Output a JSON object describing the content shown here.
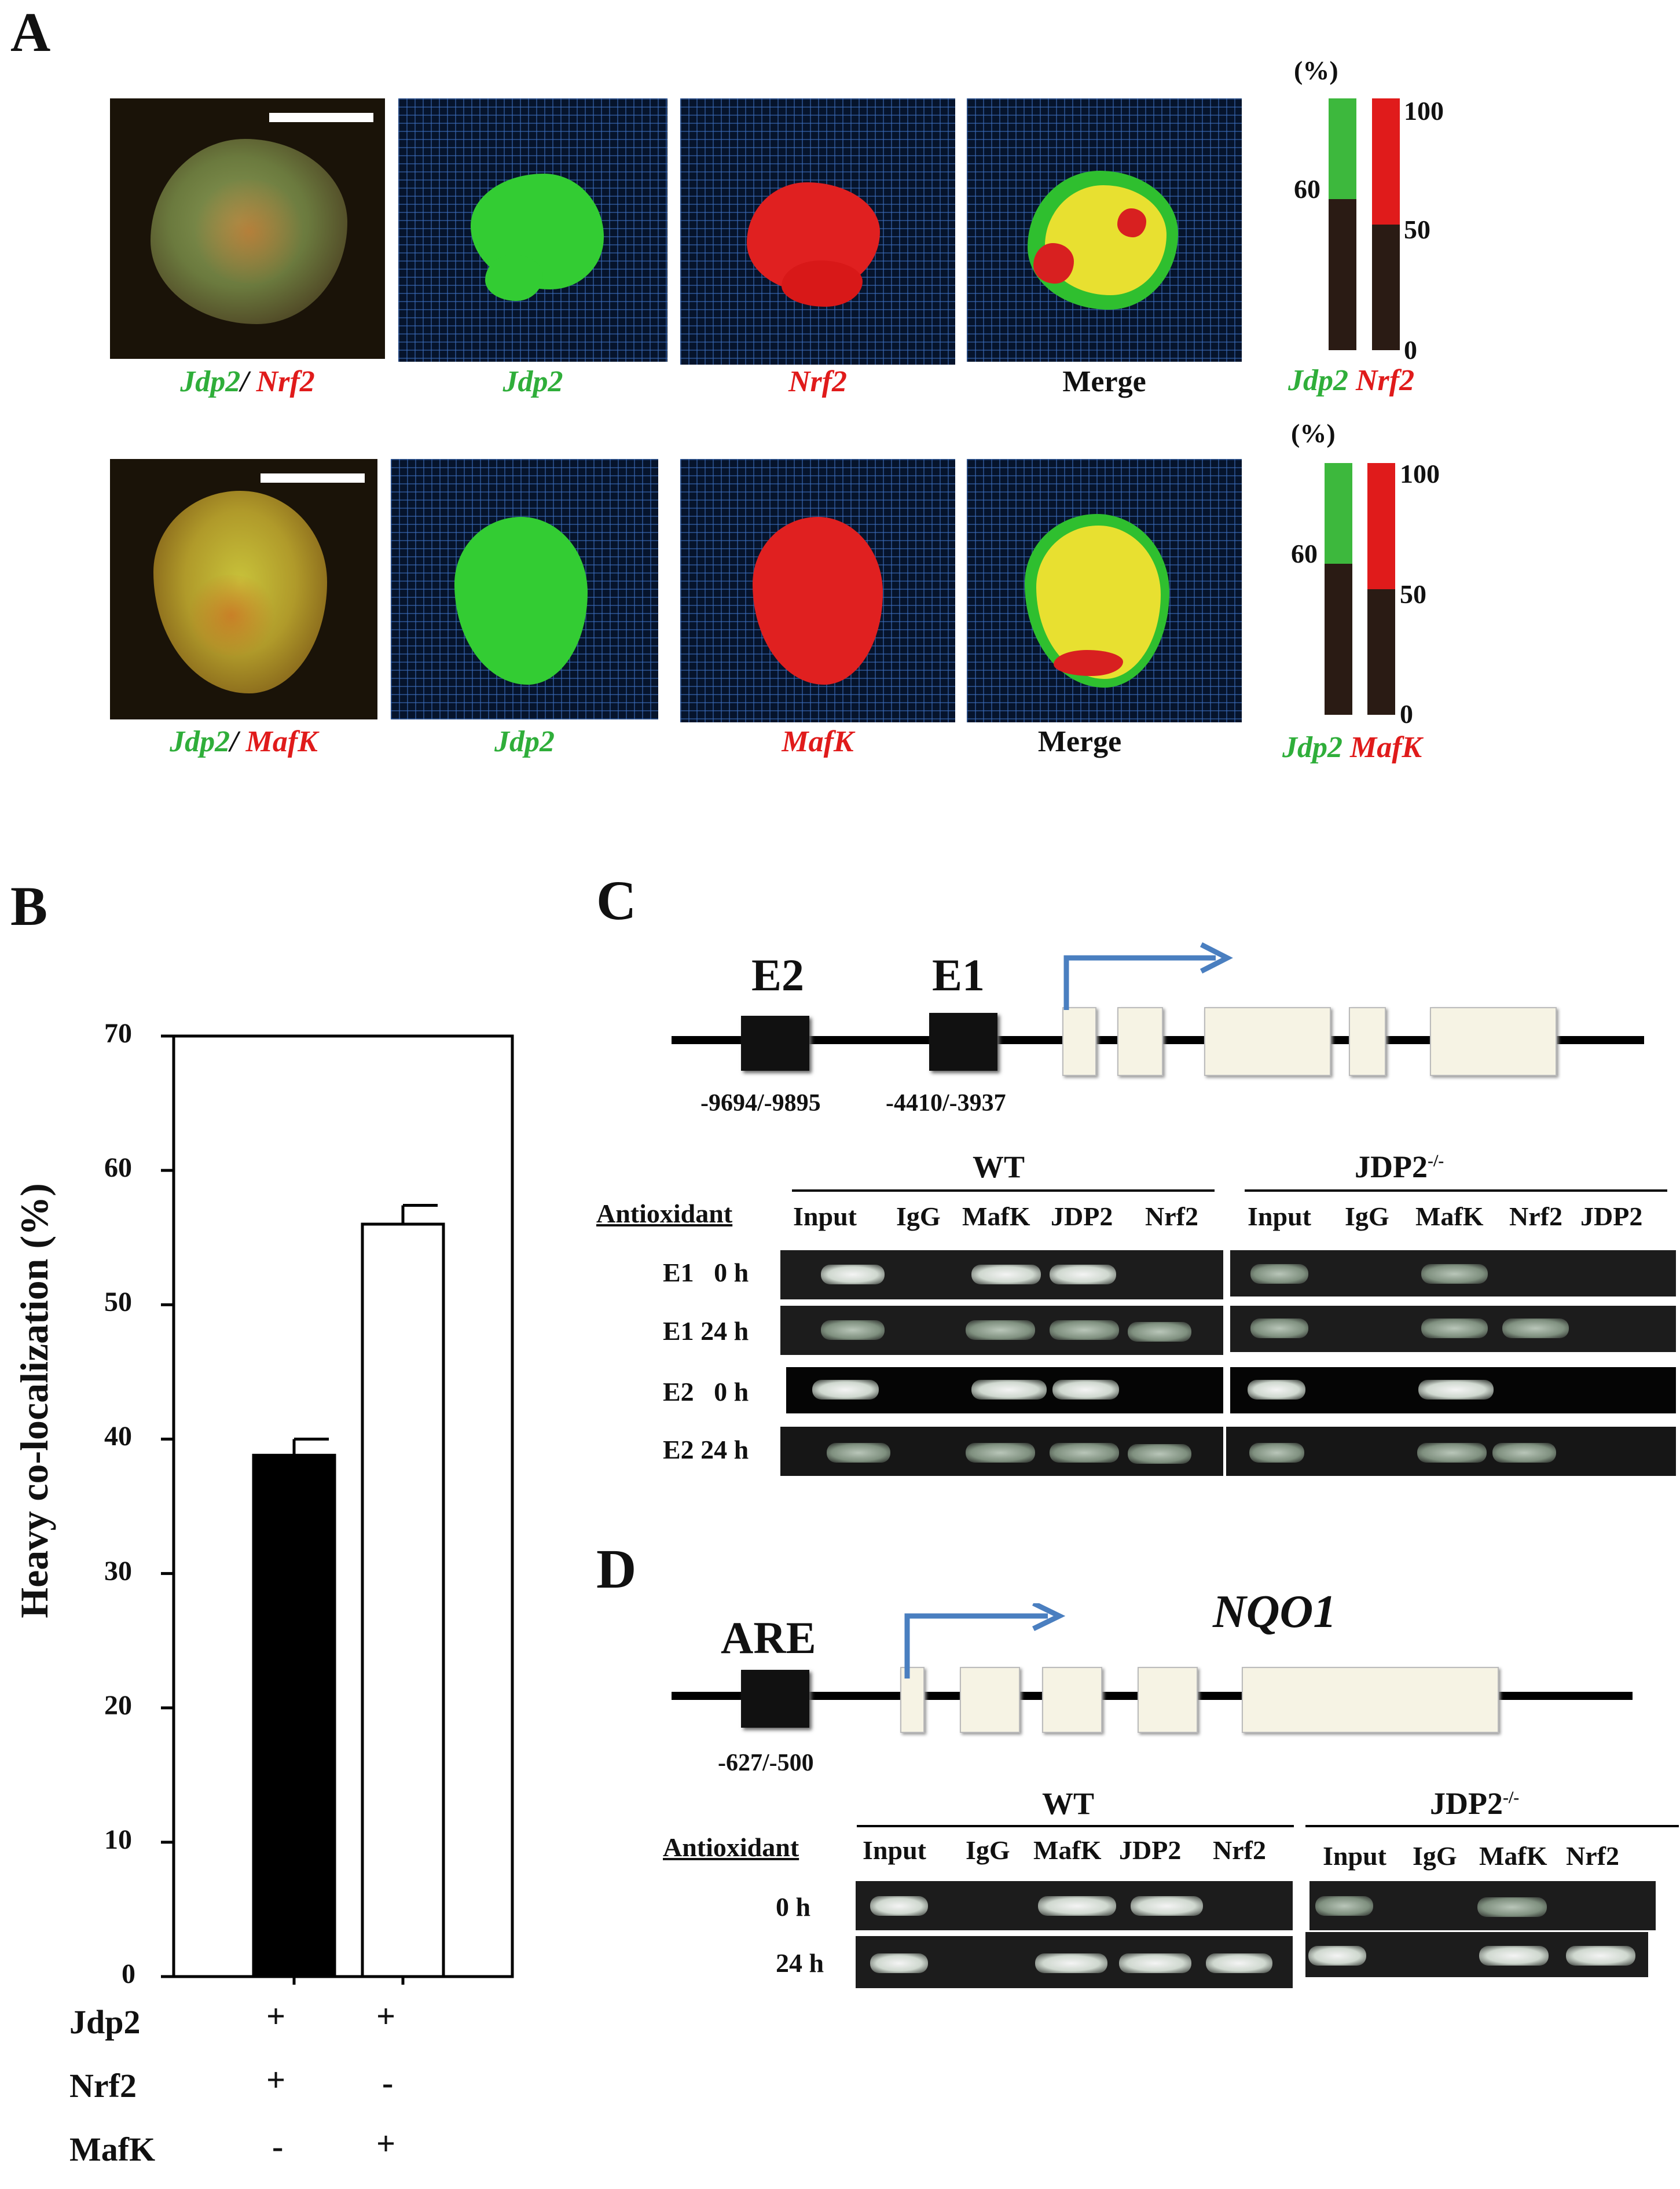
{
  "panels": {
    "A": {
      "letter": "A",
      "row1": {
        "captions": [
          "Jdp2",
          "/",
          "Nrf2",
          "Jdp2",
          "Nrf2",
          "Merge"
        ],
        "bar": {
          "percent_label": "(%)",
          "left_tick": "60",
          "right_ticks": [
            "100",
            "50",
            "0"
          ],
          "legend": [
            "Jdp2",
            "Nrf2"
          ],
          "left_value": 60,
          "right_value": 50
        }
      },
      "row2": {
        "captions": [
          "Jdp2",
          "/",
          "MafK",
          "Jdp2",
          "MafK",
          "Merge"
        ],
        "bar": {
          "percent_label": "(%)",
          "left_tick": "60",
          "right_ticks": [
            "100",
            "50",
            "0"
          ],
          "legend": [
            "Jdp2",
            "MafK"
          ],
          "left_value": 60,
          "right_value": 50
        }
      }
    },
    "B": {
      "letter": "B",
      "ylabel": "Heavy co-localization (%)",
      "yticks": [
        "70",
        "60",
        "50",
        "40",
        "30",
        "20",
        "10",
        "0"
      ],
      "rows": [
        {
          "label": "Jdp2",
          "marks": [
            "+",
            "+"
          ]
        },
        {
          "label": "Nrf2",
          "marks": [
            "+",
            "-"
          ]
        },
        {
          "label": "MafK",
          "marks": [
            "-",
            "+"
          ]
        }
      ]
    },
    "C": {
      "letter": "C",
      "elements": [
        "E2",
        "E1"
      ],
      "positions": [
        "-9694/-9895",
        "-4410/-3937"
      ],
      "wt_label": "WT",
      "ko_label": "JDP2",
      "ko_sup": "-/-",
      "antioxidant": "Antioxidant",
      "wt_lanes": [
        "Input",
        "IgG",
        "MafK",
        "JDP2",
        "Nrf2"
      ],
      "ko_lanes": [
        "Input",
        "IgG",
        "MafK",
        "Nrf2",
        "JDP2"
      ],
      "rows": [
        "E1   0 h",
        "E1 24 h",
        "E2   0 h",
        "E2 24 h"
      ]
    },
    "D": {
      "letter": "D",
      "element": "ARE",
      "gene": "NQO1",
      "position": "-627/-500",
      "wt_label": "WT",
      "ko_label": "JDP2",
      "ko_sup": "-/-",
      "antioxidant": "Antioxidant",
      "wt_lanes": [
        "Input",
        "IgG",
        "MafK",
        "JDP2",
        "Nrf2"
      ],
      "ko_lanes": [
        "Input",
        "IgG",
        "MafK",
        "Nrf2"
      ],
      "rows": [
        "0 h",
        "24 h"
      ]
    }
  },
  "chart_data": [
    {
      "type": "bar",
      "categories": [
        "Jdp2 + Nrf2",
        "Jdp2 + MafK"
      ],
      "values": [
        38.8,
        56.0
      ],
      "errors": [
        1.2,
        1.4
      ],
      "colors": [
        "#000000",
        "#ffffff"
      ],
      "ylabel": "Heavy co-localization (%)",
      "ylim": [
        0,
        70
      ],
      "yticks": [
        0,
        10,
        20,
        30,
        40,
        50,
        60,
        70
      ]
    }
  ]
}
